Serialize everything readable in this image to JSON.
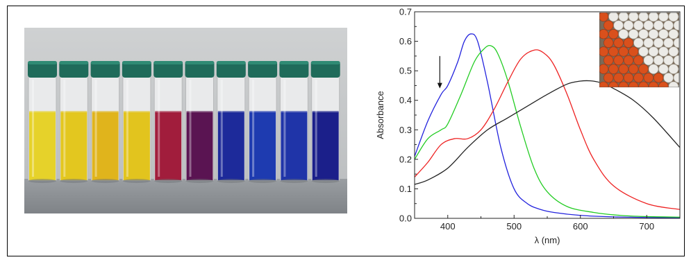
{
  "vials": {
    "count": 10,
    "liquid_colors": [
      "#e6d22a",
      "#e3c71f",
      "#e0b41c",
      "#e2c41e",
      "#a11d3c",
      "#5a1452",
      "#1d2a9a",
      "#1e3bb0",
      "#1f34a8",
      "#1b1f8a"
    ],
    "cap_color": "#1f6b5a",
    "bench_color": "#8f9398",
    "wall_color": "#c9cbcc"
  },
  "inset": {
    "description_colors": {
      "white_spheres": "#ecebe7",
      "orange_spheres": "#d9501c",
      "background": "#7a6a58"
    }
  },
  "chart_data": {
    "type": "line",
    "xlabel": "λ (nm)",
    "ylabel": "Absorbance",
    "xlim": [
      350,
      750
    ],
    "ylim": [
      0.0,
      0.7
    ],
    "xticks": [
      400,
      500,
      600,
      700
    ],
    "yticks": [
      0.0,
      0.1,
      0.2,
      0.3,
      0.4,
      0.5,
      0.6,
      0.7
    ],
    "ytick_labels": [
      "0.0",
      "0.1",
      "0.2",
      "0.3",
      "0.4",
      "0.5",
      "0.6",
      "0.7"
    ],
    "series": [
      {
        "color": "#2222dd",
        "x": [
          350,
          370,
          390,
          400,
          415,
          425,
          435,
          445,
          460,
          480,
          500,
          520,
          540,
          560,
          600,
          650,
          700,
          750
        ],
        "y": [
          0.21,
          0.33,
          0.42,
          0.45,
          0.53,
          0.6,
          0.625,
          0.6,
          0.46,
          0.24,
          0.1,
          0.05,
          0.03,
          0.02,
          0.01,
          0.005,
          0.003,
          0.002
        ]
      },
      {
        "color": "#22cc22",
        "x": [
          350,
          370,
          390,
          400,
          420,
          440,
          455,
          465,
          475,
          490,
          510,
          530,
          550,
          580,
          620,
          660,
          700,
          750
        ],
        "y": [
          0.2,
          0.27,
          0.3,
          0.32,
          0.42,
          0.53,
          0.575,
          0.585,
          0.56,
          0.47,
          0.31,
          0.17,
          0.09,
          0.04,
          0.02,
          0.01,
          0.006,
          0.004
        ]
      },
      {
        "color": "#ee2222",
        "x": [
          350,
          370,
          390,
          410,
          430,
          450,
          470,
          490,
          510,
          530,
          545,
          560,
          580,
          600,
          620,
          650,
          700,
          750
        ],
        "y": [
          0.14,
          0.19,
          0.25,
          0.27,
          0.27,
          0.3,
          0.37,
          0.46,
          0.54,
          0.57,
          0.56,
          0.52,
          0.42,
          0.3,
          0.2,
          0.11,
          0.05,
          0.03
        ]
      },
      {
        "color": "#222222",
        "x": [
          350,
          370,
          400,
          430,
          460,
          490,
          520,
          550,
          580,
          600,
          615,
          630,
          650,
          680,
          710,
          750
        ],
        "y": [
          0.115,
          0.13,
          0.17,
          0.24,
          0.3,
          0.34,
          0.38,
          0.42,
          0.455,
          0.465,
          0.466,
          0.46,
          0.44,
          0.4,
          0.34,
          0.24
        ]
      }
    ],
    "annotations": [
      {
        "type": "arrow",
        "direction": "down",
        "x": 388,
        "y_from": 0.55,
        "y_to": 0.44
      }
    ]
  }
}
